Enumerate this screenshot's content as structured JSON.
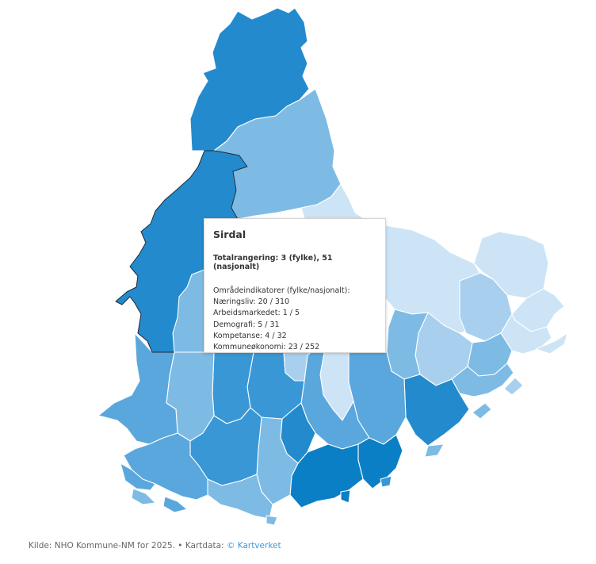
{
  "map": {
    "selected_region": "Sirdal",
    "colors": {
      "level_1": "#cce4f6",
      "level_2": "#a8d0ee",
      "level_3": "#7ebbe4",
      "level_4": "#5aa7dd",
      "level_5": "#3a97d6",
      "level_6": "#238bcd",
      "level_7": "#0a7fc6",
      "border": "#ffffff",
      "selected_border": "#1b2a3a"
    }
  },
  "tooltip": {
    "title": "Sirdal",
    "total": "Totalrangering: 3 (fylke), 51 (nasjonalt)",
    "section": "Områdeindikatorer (fylke/nasjonalt):",
    "indicators": [
      "Næringsliv: 20 / 310",
      "Arbeidsmarkedet: 1 / 5",
      "Demografi: 5 / 31",
      "Kompetanse: 4 / 32",
      "Kommuneøkonomi: 23 / 252"
    ]
  },
  "footer": {
    "source": "Kilde: NHO Kommune-NM for 2025. • Kartdata: ",
    "link": "© Kartverket"
  }
}
